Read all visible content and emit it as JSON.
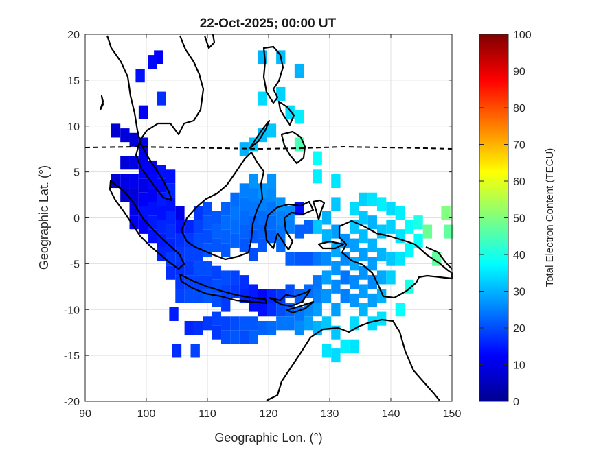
{
  "chart_data": {
    "type": "heatmap",
    "title": "22-Oct-2025; 00:00 UT",
    "xlabel": "Geographic Lon. (°)",
    "ylabel": "Geographic Lat. (°)",
    "xlim": [
      90,
      150
    ],
    "ylim": [
      -20,
      20
    ],
    "xticks": [
      "90",
      "100",
      "110",
      "120",
      "130",
      "140",
      "150"
    ],
    "yticks": [
      "20",
      "15",
      "10",
      "5",
      "0",
      "-5",
      "-10",
      "-15",
      "-20"
    ],
    "grid": true,
    "colorbar": {
      "label": "Total Electron Content (TECU)",
      "range": [
        0,
        100
      ],
      "ticks": [
        "0",
        "10",
        "20",
        "30",
        "40",
        "50",
        "60",
        "70",
        "80",
        "90",
        "100"
      ],
      "colormap": "jet"
    },
    "cell_size_deg": [
      1.5,
      1.5
    ],
    "tec_cells": [
      [
        95,
        9.5,
        8
      ],
      [
        96.5,
        9,
        9
      ],
      [
        98,
        8.5,
        9
      ],
      [
        99.5,
        8,
        10
      ],
      [
        95,
        4,
        8
      ],
      [
        96.5,
        6,
        9
      ],
      [
        96.5,
        4,
        10
      ],
      [
        96.5,
        2.5,
        8
      ],
      [
        98,
        6,
        10
      ],
      [
        98,
        4,
        11
      ],
      [
        98,
        2.5,
        9
      ],
      [
        98,
        1,
        10
      ],
      [
        98,
        -0.5,
        12
      ],
      [
        99.5,
        6.5,
        11
      ],
      [
        99.5,
        5,
        12
      ],
      [
        99.5,
        3.5,
        10
      ],
      [
        99.5,
        2,
        12
      ],
      [
        99.5,
        0.5,
        14
      ],
      [
        99.5,
        -1,
        12
      ],
      [
        101,
        5.5,
        12
      ],
      [
        101,
        4,
        13
      ],
      [
        101,
        2.5,
        12
      ],
      [
        101,
        1,
        14
      ],
      [
        101,
        -0.5,
        15
      ],
      [
        101,
        -2,
        14
      ],
      [
        102.5,
        5,
        14
      ],
      [
        102.5,
        3.5,
        13
      ],
      [
        102.5,
        2,
        15
      ],
      [
        102.5,
        0.5,
        14
      ],
      [
        102.5,
        -1,
        16
      ],
      [
        102.5,
        -2.5,
        15
      ],
      [
        102.5,
        -4,
        16
      ],
      [
        104,
        4.5,
        14
      ],
      [
        104,
        3,
        16
      ],
      [
        104,
        1.5,
        14
      ],
      [
        104,
        0,
        16
      ],
      [
        104,
        -1.5,
        17
      ],
      [
        104,
        -3,
        16
      ],
      [
        104,
        -4.5,
        18
      ],
      [
        104,
        -6,
        17
      ],
      [
        105.5,
        0.5,
        10
      ],
      [
        105.5,
        -1,
        14
      ],
      [
        105.5,
        -2.5,
        17
      ],
      [
        105.5,
        -4,
        18
      ],
      [
        105.5,
        -5.5,
        17
      ],
      [
        105.5,
        -7,
        18
      ],
      [
        105.5,
        -8.5,
        19
      ],
      [
        107,
        -1,
        16
      ],
      [
        107,
        -2.5,
        18
      ],
      [
        107,
        -4,
        19
      ],
      [
        107,
        -5.5,
        18
      ],
      [
        107,
        -7,
        19
      ],
      [
        107,
        -8.5,
        20
      ],
      [
        107,
        -12,
        16
      ],
      [
        108.5,
        0.5,
        18
      ],
      [
        108.5,
        -1,
        19
      ],
      [
        108.5,
        -2.5,
        20
      ],
      [
        108.5,
        -4,
        19
      ],
      [
        108.5,
        -5.5,
        20
      ],
      [
        108.5,
        -7,
        19
      ],
      [
        108.5,
        -8.5,
        20
      ],
      [
        108.5,
        -12,
        17
      ],
      [
        110,
        1,
        20
      ],
      [
        110,
        -0.5,
        21
      ],
      [
        110,
        -2,
        20
      ],
      [
        110,
        -3.5,
        21
      ],
      [
        110,
        -5.5,
        20
      ],
      [
        110,
        -7,
        19
      ],
      [
        110,
        -8.5,
        21
      ],
      [
        110,
        -11.5,
        18
      ],
      [
        111.5,
        0,
        21
      ],
      [
        111.5,
        -1.5,
        22
      ],
      [
        111.5,
        -3,
        21
      ],
      [
        111.5,
        -6,
        19
      ],
      [
        111.5,
        -7.5,
        20
      ],
      [
        111.5,
        -9,
        20
      ],
      [
        111.5,
        -11,
        19
      ],
      [
        111.5,
        -12.5,
        18
      ],
      [
        113,
        1,
        22
      ],
      [
        113,
        -0.5,
        23
      ],
      [
        113,
        -2,
        22
      ],
      [
        113,
        -3.5,
        21
      ],
      [
        113,
        -6.5,
        20
      ],
      [
        113,
        -8,
        19
      ],
      [
        113,
        -9.5,
        18
      ],
      [
        113,
        -11.5,
        19
      ],
      [
        113,
        -13,
        20
      ],
      [
        114.5,
        2,
        23
      ],
      [
        114.5,
        0.5,
        24
      ],
      [
        114.5,
        -1,
        23
      ],
      [
        114.5,
        -2.5,
        22
      ],
      [
        114.5,
        -6.5,
        19
      ],
      [
        114.5,
        -8,
        18
      ],
      [
        114.5,
        -11.5,
        20
      ],
      [
        114.5,
        -13,
        21
      ],
      [
        116,
        7.5,
        30
      ],
      [
        116,
        3,
        25
      ],
      [
        116,
        1.5,
        24
      ],
      [
        116,
        0,
        23
      ],
      [
        116,
        -1.5,
        22
      ],
      [
        116,
        -3,
        21
      ],
      [
        116,
        -7,
        17
      ],
      [
        116,
        -8.5,
        16
      ],
      [
        116,
        -11.5,
        21
      ],
      [
        116,
        -13,
        20
      ],
      [
        117.5,
        8,
        32
      ],
      [
        117.5,
        4,
        27
      ],
      [
        117.5,
        2.5,
        25
      ],
      [
        117.5,
        1,
        24
      ],
      [
        117.5,
        -0.5,
        22
      ],
      [
        117.5,
        -2,
        21
      ],
      [
        117.5,
        -4,
        20
      ],
      [
        117.5,
        -8,
        15
      ],
      [
        117.5,
        -9.5,
        14
      ],
      [
        117.5,
        -11.5,
        21
      ],
      [
        117.5,
        -13,
        22
      ],
      [
        119,
        9,
        31
      ],
      [
        119,
        13,
        34
      ],
      [
        119,
        17.5,
        30
      ],
      [
        119,
        3,
        27
      ],
      [
        119,
        1.5,
        25
      ],
      [
        119,
        0,
        23
      ],
      [
        119,
        -1.5,
        22
      ],
      [
        119,
        -3,
        21
      ],
      [
        119,
        -8.5,
        13
      ],
      [
        119,
        -10,
        14
      ],
      [
        119,
        -12,
        22
      ],
      [
        120.5,
        9.5,
        32
      ],
      [
        120.5,
        4,
        27
      ],
      [
        120.5,
        2.5,
        26
      ],
      [
        120.5,
        1,
        24
      ],
      [
        120.5,
        -0.5,
        23
      ],
      [
        120.5,
        -2,
        22
      ],
      [
        120.5,
        -8.5,
        16
      ],
      [
        120.5,
        -10,
        17
      ],
      [
        120.5,
        -12,
        23
      ],
      [
        122,
        13.5,
        33
      ],
      [
        122,
        17.5,
        31
      ],
      [
        122,
        1.5,
        27
      ],
      [
        122,
        0,
        25
      ],
      [
        122,
        -1.5,
        24
      ],
      [
        122,
        -3,
        23
      ],
      [
        122,
        -8.5,
        18
      ],
      [
        122,
        -10,
        20
      ],
      [
        122,
        -11.5,
        24
      ],
      [
        123.5,
        11.5,
        34
      ],
      [
        123.5,
        0.5,
        26
      ],
      [
        123.5,
        -1,
        25
      ],
      [
        123.5,
        -4.5,
        22
      ],
      [
        123.5,
        -8,
        20
      ],
      [
        123.5,
        -10,
        22
      ],
      [
        123.5,
        -11.5,
        24
      ],
      [
        125,
        16,
        30
      ],
      [
        125,
        11,
        36
      ],
      [
        125,
        8,
        45
      ],
      [
        125,
        1,
        14
      ],
      [
        125,
        -1.5,
        22
      ],
      [
        125,
        -4.5,
        21
      ],
      [
        125,
        -8.5,
        22
      ],
      [
        125,
        -10.5,
        24
      ],
      [
        125,
        -12,
        26
      ],
      [
        126.5,
        -1,
        22
      ],
      [
        126.5,
        -4.5,
        21
      ],
      [
        126.5,
        -8,
        23
      ],
      [
        126.5,
        -10,
        26
      ],
      [
        126.5,
        -11.5,
        28
      ],
      [
        128,
        6.5,
        38
      ],
      [
        128,
        4.5,
        36
      ],
      [
        128,
        -1,
        32
      ],
      [
        128,
        -4.5,
        24
      ],
      [
        128,
        -7,
        24
      ],
      [
        128,
        -8.5,
        25
      ],
      [
        128,
        -10,
        28
      ],
      [
        128,
        -12,
        30
      ],
      [
        129.5,
        0,
        30
      ],
      [
        129.5,
        -2,
        30
      ],
      [
        129.5,
        -4.5,
        26
      ],
      [
        129.5,
        -6.5,
        28
      ],
      [
        129.5,
        -8.5,
        27
      ],
      [
        129.5,
        -11.5,
        32
      ],
      [
        129.5,
        -14.5,
        35
      ],
      [
        131,
        4,
        35
      ],
      [
        131,
        1.5,
        32
      ],
      [
        131,
        -1.5,
        28
      ],
      [
        131,
        -3.5,
        29
      ],
      [
        131,
        -5.5,
        27
      ],
      [
        131,
        -7.5,
        26
      ],
      [
        131,
        -10,
        28
      ],
      [
        131,
        -12.5,
        32
      ],
      [
        131,
        -15,
        34
      ],
      [
        132.5,
        -2.5,
        27
      ],
      [
        132.5,
        -4.5,
        26
      ],
      [
        132.5,
        -6.5,
        24
      ],
      [
        132.5,
        -8.5,
        25
      ],
      [
        132.5,
        -14,
        36
      ],
      [
        134,
        1,
        34
      ],
      [
        134,
        -1,
        32
      ],
      [
        134,
        -3,
        28
      ],
      [
        134,
        -5,
        29
      ],
      [
        134,
        -7,
        26
      ],
      [
        134,
        -9,
        27
      ],
      [
        134,
        -11.5,
        34
      ],
      [
        134,
        -14,
        35
      ],
      [
        135.5,
        2,
        33
      ],
      [
        135.5,
        0,
        32
      ],
      [
        135.5,
        -2,
        31
      ],
      [
        135.5,
        -4,
        28
      ],
      [
        135.5,
        -6,
        27
      ],
      [
        135.5,
        -8,
        28
      ],
      [
        135.5,
        -10,
        30
      ],
      [
        137,
        2,
        35
      ],
      [
        137,
        -0.5,
        30
      ],
      [
        137,
        -3,
        30
      ],
      [
        137,
        -5,
        28
      ],
      [
        137,
        -7,
        26
      ],
      [
        137,
        -9,
        28
      ],
      [
        137,
        -11.5,
        34
      ],
      [
        138.5,
        1.5,
        36
      ],
      [
        138.5,
        -1.5,
        32
      ],
      [
        138.5,
        -4,
        30
      ],
      [
        138.5,
        -6.5,
        29
      ],
      [
        138.5,
        -8.5,
        30
      ],
      [
        138.5,
        -11,
        35
      ],
      [
        140,
        1,
        34
      ],
      [
        140,
        -1,
        33
      ],
      [
        140,
        -4.5,
        32
      ],
      [
        140,
        -6.5,
        33
      ],
      [
        141.5,
        0.5,
        36
      ],
      [
        141.5,
        -2,
        35
      ],
      [
        141.5,
        -4.5,
        35
      ],
      [
        141.5,
        -10,
        38
      ],
      [
        143,
        -1,
        38
      ],
      [
        143,
        -3.5,
        37
      ],
      [
        143,
        -7.5,
        40
      ],
      [
        144.5,
        -0.5,
        40
      ],
      [
        144.5,
        -2.5,
        38
      ],
      [
        146,
        -1.5,
        48
      ],
      [
        147.5,
        -4.5,
        47
      ],
      [
        149,
        0.5,
        50
      ],
      [
        149.5,
        -1.5,
        47
      ],
      [
        102,
        17.5,
        12
      ],
      [
        101,
        17,
        13
      ],
      [
        99,
        15.5,
        14
      ],
      [
        99.5,
        11.5,
        11
      ],
      [
        102.5,
        13,
        17
      ],
      [
        104.5,
        -10.5,
        15
      ],
      [
        105,
        -14.5,
        17
      ],
      [
        108,
        -14.5,
        19
      ]
    ]
  }
}
